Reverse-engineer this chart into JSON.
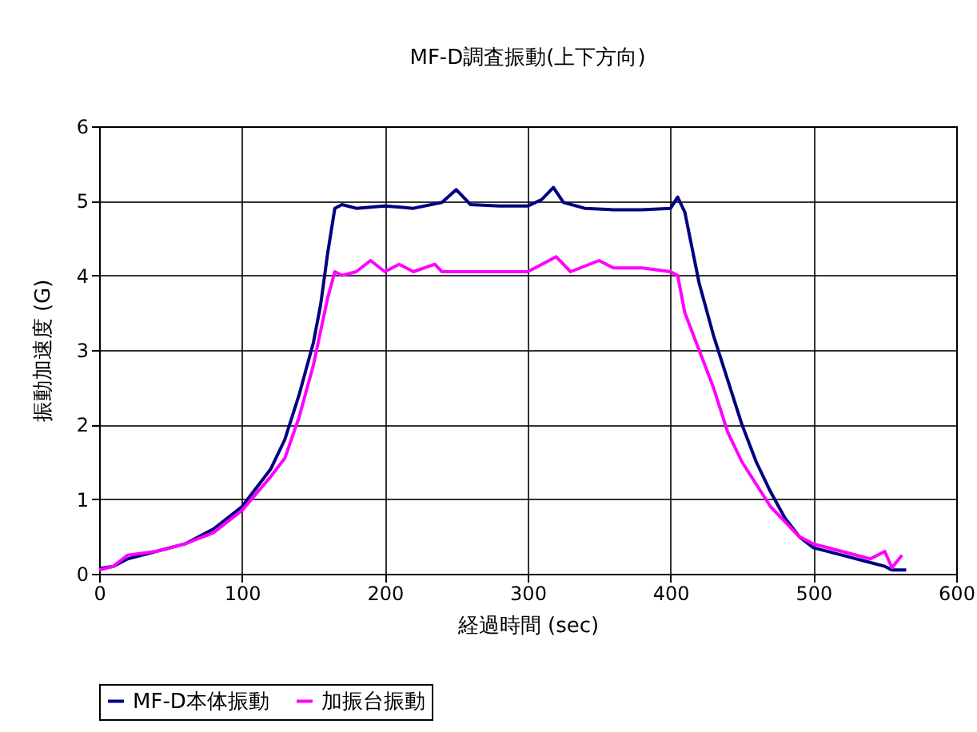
{
  "chart_data": {
    "type": "line",
    "title": "MF-D調査振動(上下方向)",
    "xlabel": "経過時間 (sec)",
    "ylabel": "振動加速度 (G)",
    "xlim": [
      0,
      600
    ],
    "xticks": [
      0,
      100,
      200,
      300,
      400,
      500,
      600
    ],
    "ylim": [
      0,
      6
    ],
    "yticks": [
      0,
      1,
      2,
      3,
      4,
      5,
      6
    ],
    "grid": true,
    "legend": "bottom",
    "series": [
      {
        "name": "MF-D本体振動",
        "color": "#000080",
        "x": [
          0,
          10,
          20,
          40,
          60,
          80,
          100,
          120,
          130,
          140,
          150,
          155,
          160,
          165,
          170,
          180,
          200,
          220,
          240,
          250,
          260,
          280,
          300,
          310,
          318,
          325,
          340,
          360,
          380,
          400,
          405,
          410,
          420,
          430,
          440,
          450,
          460,
          470,
          480,
          490,
          500,
          520,
          540,
          550,
          555,
          565
        ],
        "values": [
          0.07,
          0.1,
          0.2,
          0.3,
          0.4,
          0.6,
          0.9,
          1.4,
          1.8,
          2.4,
          3.1,
          3.6,
          4.3,
          4.9,
          4.95,
          4.9,
          4.93,
          4.9,
          4.98,
          5.15,
          4.95,
          4.93,
          4.93,
          5.02,
          5.18,
          4.98,
          4.9,
          4.88,
          4.88,
          4.9,
          5.05,
          4.85,
          3.9,
          3.2,
          2.6,
          2.0,
          1.5,
          1.1,
          0.75,
          0.5,
          0.35,
          0.25,
          0.15,
          0.1,
          0.05,
          0.05
        ]
      },
      {
        "name": "加振台振動",
        "color": "#ff00ff",
        "x": [
          0,
          10,
          20,
          40,
          60,
          80,
          100,
          120,
          130,
          140,
          150,
          160,
          165,
          170,
          180,
          190,
          200,
          210,
          220,
          235,
          240,
          260,
          280,
          300,
          310,
          320,
          330,
          350,
          360,
          380,
          400,
          405,
          410,
          420,
          430,
          440,
          450,
          460,
          470,
          480,
          490,
          500,
          520,
          540,
          550,
          555,
          562
        ],
        "values": [
          0.05,
          0.1,
          0.25,
          0.3,
          0.4,
          0.55,
          0.85,
          1.3,
          1.55,
          2.1,
          2.8,
          3.7,
          4.05,
          4.0,
          4.05,
          4.2,
          4.05,
          4.15,
          4.05,
          4.15,
          4.05,
          4.05,
          4.05,
          4.05,
          4.15,
          4.25,
          4.05,
          4.2,
          4.1,
          4.1,
          4.05,
          4.0,
          3.5,
          3.0,
          2.5,
          1.9,
          1.5,
          1.2,
          0.9,
          0.7,
          0.5,
          0.4,
          0.3,
          0.2,
          0.3,
          0.08,
          0.25
        ]
      }
    ]
  }
}
